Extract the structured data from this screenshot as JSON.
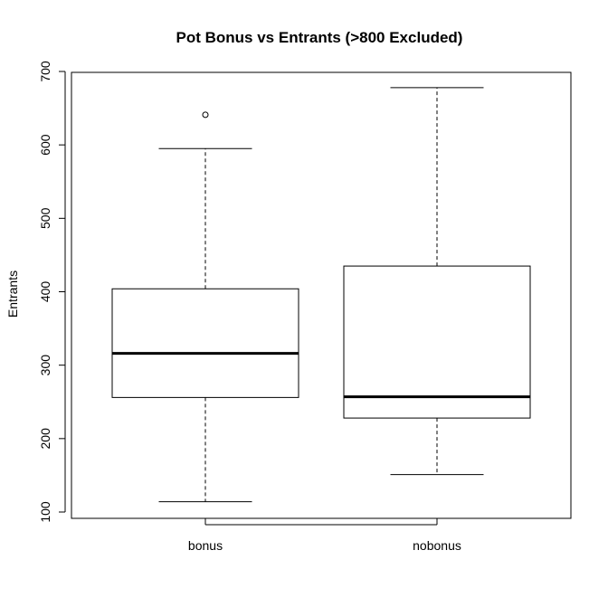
{
  "chart_data": {
    "type": "boxplot",
    "title": "Pot Bonus vs Entrants (>800 Excluded)",
    "xlabel": "",
    "ylabel": "Entrants",
    "ylim": [
      90,
      700
    ],
    "yticks": [
      100,
      200,
      300,
      400,
      500,
      600,
      700
    ],
    "ytick_labels": [
      "100",
      "200",
      "300",
      "400",
      "500",
      "600",
      "700"
    ],
    "categories": [
      "bonus",
      "nobonus"
    ],
    "boxes": [
      {
        "category": "bonus",
        "whisker_low": 114,
        "q1": 256,
        "median": 316,
        "q3": 404,
        "whisker_high": 595,
        "outliers": [
          641
        ]
      },
      {
        "category": "nobonus",
        "whisker_low": 151,
        "q1": 228,
        "median": 257,
        "q3": 435,
        "whisker_high": 678,
        "outliers": []
      }
    ],
    "grid": false,
    "legend": "none"
  }
}
